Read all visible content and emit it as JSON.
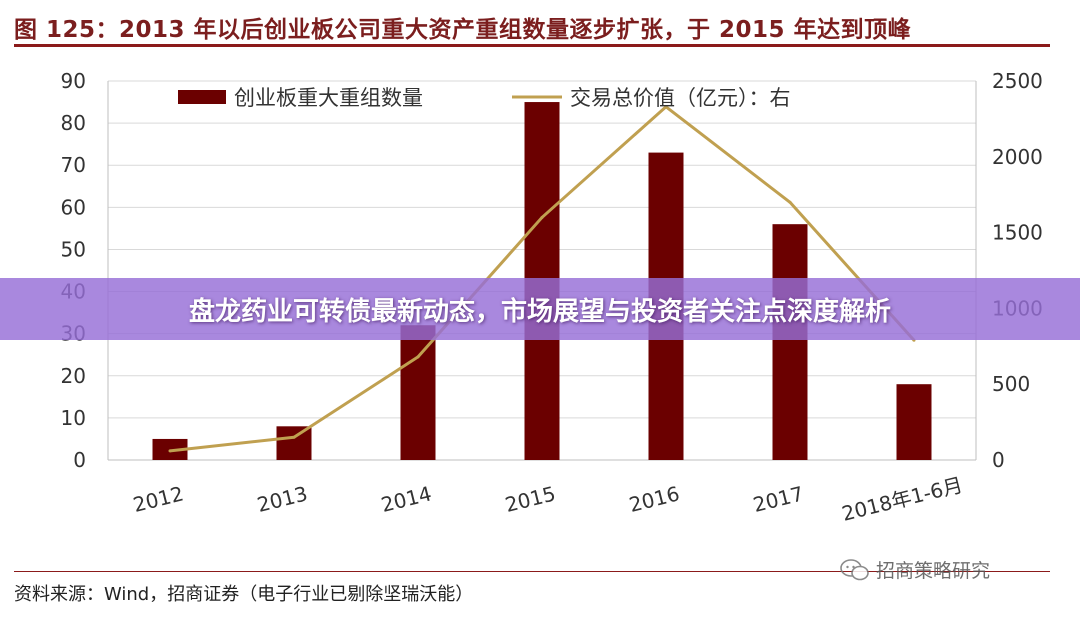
{
  "title": "图 125：2013 年以后创业板公司重大资产重组数量逐步扩张，于 2015 年达到顶峰",
  "overlay_banner": "盘龙药业可转债最新动态，市场展望与投资者关注点深度解析",
  "source_note": "资料来源：Wind，招商证券（电子行业已剔除坚瑞沃能）",
  "watermark": "招商策略研究",
  "colors": {
    "title": "#7b1e1e",
    "bar": "#6b0000",
    "line": "#c0a050",
    "overlay": "#966ed7"
  },
  "chart_data": {
    "type": "bar",
    "categories": [
      "2012",
      "2013",
      "2014",
      "2015",
      "2016",
      "2017",
      "2018年1-6月"
    ],
    "series": [
      {
        "name": "创业板重大重组数量",
        "kind": "bar",
        "axis": "left",
        "values": [
          5,
          8,
          32,
          85,
          73,
          56,
          18
        ]
      },
      {
        "name": "交易总价值（亿元）：右",
        "kind": "line",
        "axis": "right",
        "values": [
          60,
          150,
          680,
          1600,
          2330,
          1700,
          790
        ]
      }
    ],
    "left_axis": {
      "ylim": [
        0,
        90
      ],
      "ticks": [
        0,
        10,
        20,
        30,
        40,
        50,
        60,
        70,
        80,
        90
      ]
    },
    "right_axis": {
      "ylim": [
        0,
        2500
      ],
      "ticks": [
        0,
        500,
        1000,
        1500,
        2000,
        2500
      ]
    },
    "legend_position": "top",
    "grid": true
  }
}
